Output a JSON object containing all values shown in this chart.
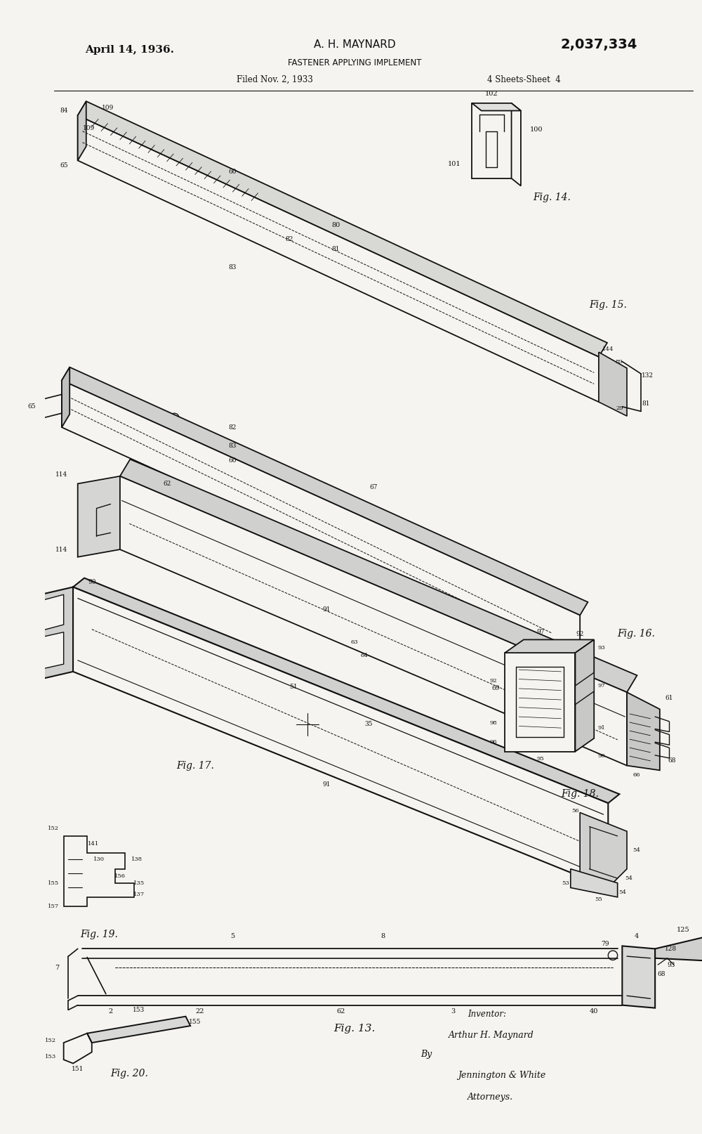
{
  "title_left": "April 14, 1936.",
  "title_center": "A. H. MAYNARD",
  "title_patent": "2,037,334",
  "subtitle": "FASTENER APPLYING IMPLEMENT",
  "filed": "Filed Nov. 2, 1933",
  "sheets": "4 Sheets-Sheet  4",
  "bg_color": "#f5f4f0",
  "line_color": "#111111",
  "fig14_label": "Fig. 14.",
  "fig15_label": "Fig. 15.",
  "fig16_label": "Fig. 16.",
  "fig17_label": "Fig. 17.",
  "fig18_label": "Fig. 18.",
  "fig19_label": "Fig. 19.",
  "fig13_label": "Fig. 13.",
  "fig20_label": "Fig. 20."
}
